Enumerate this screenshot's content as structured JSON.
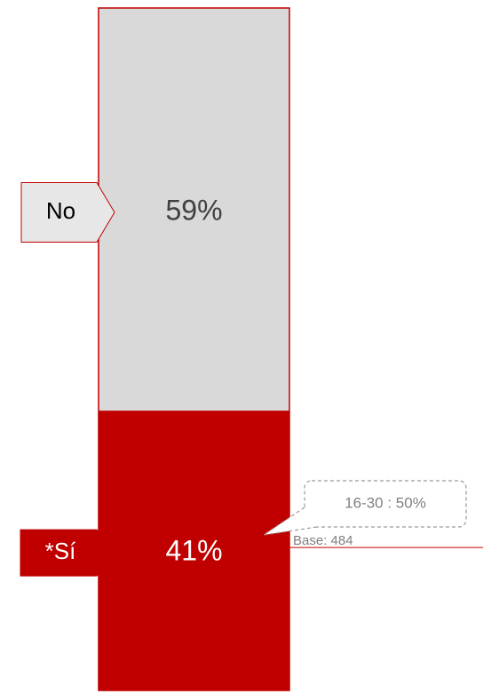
{
  "chart_data": {
    "type": "bar",
    "stacked": true,
    "orientation": "vertical",
    "unit": "%",
    "segments": [
      {
        "label": "*Sí",
        "value": 41,
        "value_label": "41%",
        "color": "#C00000",
        "text_color": "#ffffff"
      },
      {
        "label": "No",
        "value": 59,
        "value_label": "59%",
        "color": "#D9D9D9",
        "text_color": "#404040"
      }
    ],
    "callout": {
      "text": "16-30 : 50%",
      "segment": "*Sí"
    },
    "base_note": "Base: 484",
    "outline_color": "#C00000"
  }
}
